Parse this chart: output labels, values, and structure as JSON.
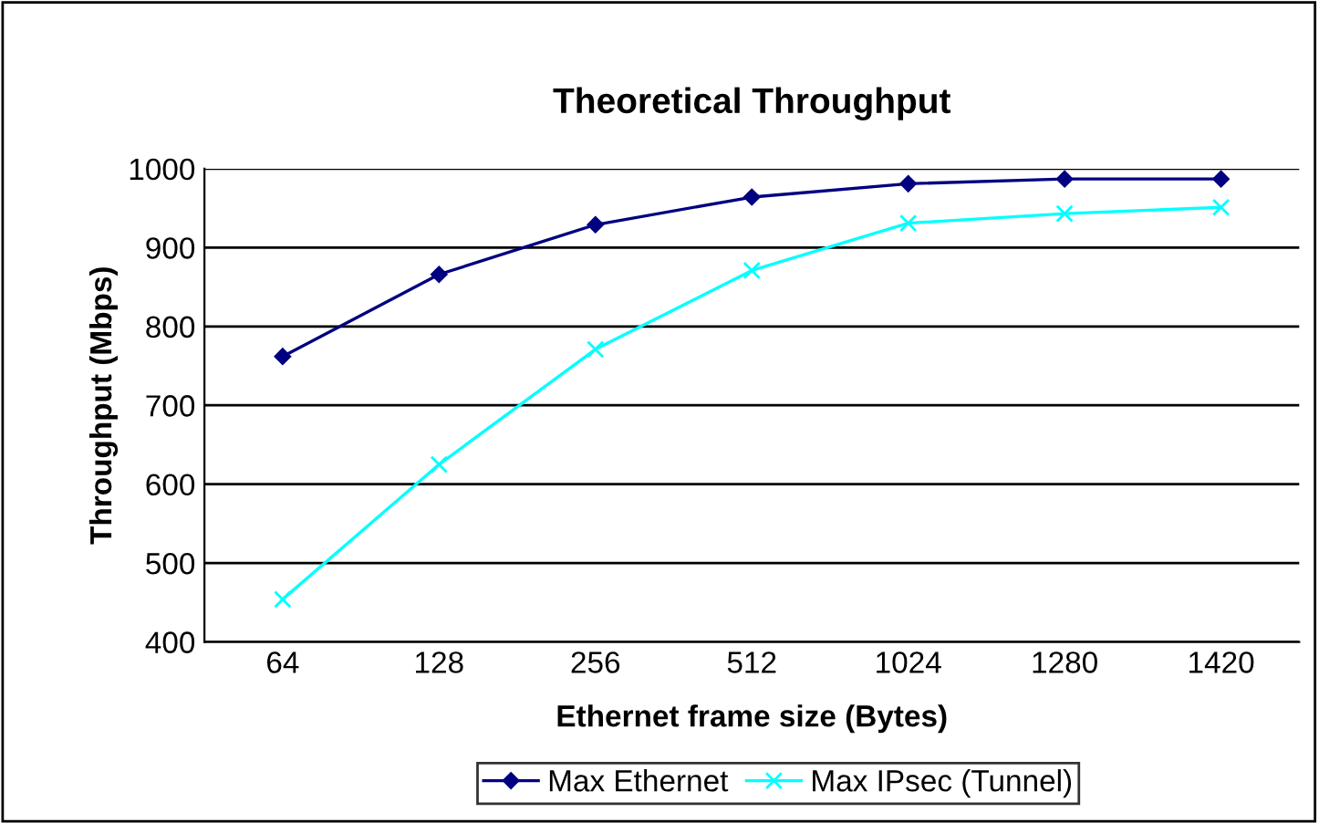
{
  "chart_data": {
    "type": "line",
    "title": "Theoretical Throughput",
    "xlabel": "Ethernet frame size (Bytes)",
    "ylabel": "Throughput (Mbps)",
    "categories": [
      "64",
      "128",
      "256",
      "512",
      "1024",
      "1280",
      "1420"
    ],
    "series": [
      {
        "name": "Max Ethernet",
        "color": "#000080",
        "marker": "diamond",
        "values": [
          762,
          866,
          929,
          964,
          981,
          987,
          987
        ]
      },
      {
        "name": "Max IPsec (Tunnel)",
        "color": "#00ffff",
        "marker": "cross",
        "values": [
          454,
          625,
          771,
          871,
          931,
          943,
          951
        ]
      }
    ],
    "ylim": [
      400,
      1000
    ],
    "yticks": [
      400,
      500,
      600,
      700,
      800,
      900,
      1000
    ],
    "grid": "y",
    "legend": "bottom"
  }
}
